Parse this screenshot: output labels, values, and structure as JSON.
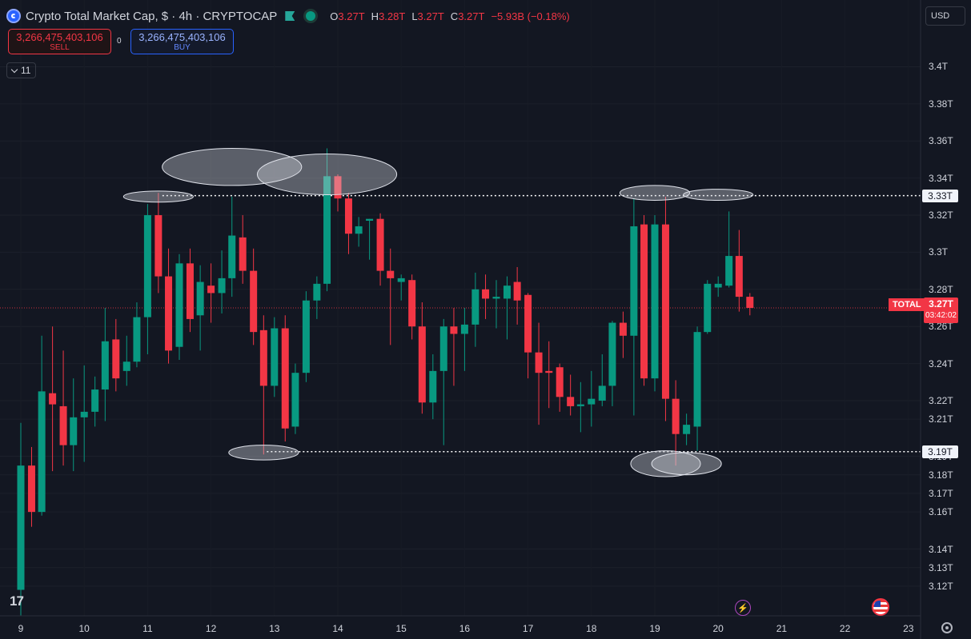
{
  "header": {
    "title": "Crypto Total Market Cap, $ · 4h · CRYPTOCAP",
    "ohlc": [
      {
        "k": "O",
        "v": "3.27T"
      },
      {
        "k": "H",
        "v": "3.28T"
      },
      {
        "k": "L",
        "v": "3.27T"
      },
      {
        "k": "C",
        "v": "3.27T"
      },
      {
        "k": "",
        "v": "−5.93B (−0.18%)"
      }
    ]
  },
  "trade": {
    "sell_value": "3,266,475,403,106",
    "sell_label": "SELL",
    "buy_value": "3,266,475,403,106",
    "buy_label": "BUY",
    "spread": "0"
  },
  "indicators": {
    "count": "11"
  },
  "currency": "USD",
  "total_label": "TOTAL",
  "current_price": {
    "price": "3.27T",
    "countdown": "03:42:02"
  },
  "levels": {
    "resistance": "3.33T",
    "support": "3.19T"
  },
  "colors": {
    "up": "#089981",
    "down": "#f23645",
    "background": "#131722"
  },
  "chart_data": {
    "type": "candlestick",
    "title": "Crypto Total Market Cap",
    "interval": "4h",
    "unit": "USD trillions",
    "ylim": [
      3.104,
      3.436
    ],
    "y_ticks": [
      "3.4T",
      "3.38T",
      "3.36T",
      "3.34T",
      "3.32T",
      "3.3T",
      "3.28T",
      "3.26T",
      "3.24T",
      "3.22T",
      "3.21T",
      "3.19T",
      "3.18T",
      "3.17T",
      "3.16T",
      "3.14T",
      "3.13T",
      "3.12T"
    ],
    "x_ticks": [
      "9",
      "10",
      "11",
      "12",
      "13",
      "14",
      "15",
      "16",
      "17",
      "18",
      "19",
      "20",
      "21",
      "22",
      "23"
    ],
    "horizontal_levels": [
      3.3305,
      3.1925
    ],
    "current_price": 3.27,
    "candles": [
      {
        "x": "9.00",
        "o": 3.118,
        "h": 3.208,
        "l": 3.104,
        "c": 3.185
      },
      {
        "x": "9.17",
        "o": 3.185,
        "h": 3.195,
        "l": 3.152,
        "c": 3.16
      },
      {
        "x": "9.33",
        "o": 3.16,
        "h": 3.255,
        "l": 3.158,
        "c": 3.225
      },
      {
        "x": "9.50",
        "o": 3.224,
        "h": 3.26,
        "l": 3.182,
        "c": 3.218
      },
      {
        "x": "9.67",
        "o": 3.217,
        "h": 3.247,
        "l": 3.185,
        "c": 3.196
      },
      {
        "x": "9.83",
        "o": 3.196,
        "h": 3.232,
        "l": 3.182,
        "c": 3.211
      },
      {
        "x": "10.00",
        "o": 3.211,
        "h": 3.239,
        "l": 3.187,
        "c": 3.214
      },
      {
        "x": "10.17",
        "o": 3.214,
        "h": 3.233,
        "l": 3.206,
        "c": 3.226
      },
      {
        "x": "10.33",
        "o": 3.226,
        "h": 3.27,
        "l": 3.209,
        "c": 3.252
      },
      {
        "x": "10.50",
        "o": 3.253,
        "h": 3.264,
        "l": 3.225,
        "c": 3.232
      },
      {
        "x": "10.67",
        "o": 3.236,
        "h": 3.255,
        "l": 3.228,
        "c": 3.241
      },
      {
        "x": "10.83",
        "o": 3.241,
        "h": 3.273,
        "l": 3.238,
        "c": 3.265
      },
      {
        "x": "11.00",
        "o": 3.265,
        "h": 3.326,
        "l": 3.245,
        "c": 3.32
      },
      {
        "x": "11.17",
        "o": 3.32,
        "h": 3.332,
        "l": 3.278,
        "c": 3.287
      },
      {
        "x": "11.33",
        "o": 3.287,
        "h": 3.302,
        "l": 3.24,
        "c": 3.247
      },
      {
        "x": "11.50",
        "o": 3.249,
        "h": 3.299,
        "l": 3.242,
        "c": 3.294
      },
      {
        "x": "11.67",
        "o": 3.294,
        "h": 3.302,
        "l": 3.257,
        "c": 3.264
      },
      {
        "x": "11.83",
        "o": 3.266,
        "h": 3.293,
        "l": 3.247,
        "c": 3.284
      },
      {
        "x": "12.00",
        "o": 3.282,
        "h": 3.294,
        "l": 3.262,
        "c": 3.278
      },
      {
        "x": "12.17",
        "o": 3.278,
        "h": 3.301,
        "l": 3.267,
        "c": 3.286
      },
      {
        "x": "12.33",
        "o": 3.286,
        "h": 3.33,
        "l": 3.276,
        "c": 3.309
      },
      {
        "x": "12.50",
        "o": 3.308,
        "h": 3.32,
        "l": 3.283,
        "c": 3.29
      },
      {
        "x": "12.67",
        "o": 3.29,
        "h": 3.302,
        "l": 3.25,
        "c": 3.257
      },
      {
        "x": "12.83",
        "o": 3.258,
        "h": 3.266,
        "l": 3.191,
        "c": 3.228
      },
      {
        "x": "13.00",
        "o": 3.228,
        "h": 3.265,
        "l": 3.222,
        "c": 3.259
      },
      {
        "x": "13.17",
        "o": 3.259,
        "h": 3.266,
        "l": 3.198,
        "c": 3.205
      },
      {
        "x": "13.33",
        "o": 3.206,
        "h": 3.24,
        "l": 3.202,
        "c": 3.235
      },
      {
        "x": "13.50",
        "o": 3.235,
        "h": 3.279,
        "l": 3.23,
        "c": 3.274
      },
      {
        "x": "13.67",
        "o": 3.274,
        "h": 3.287,
        "l": 3.264,
        "c": 3.283
      },
      {
        "x": "13.83",
        "o": 3.283,
        "h": 3.356,
        "l": 3.279,
        "c": 3.341
      },
      {
        "x": "14.00",
        "o": 3.341,
        "h": 3.342,
        "l": 3.322,
        "c": 3.329
      },
      {
        "x": "14.17",
        "o": 3.329,
        "h": 3.332,
        "l": 3.299,
        "c": 3.31
      },
      {
        "x": "14.33",
        "o": 3.31,
        "h": 3.319,
        "l": 3.303,
        "c": 3.314
      },
      {
        "x": "14.50",
        "o": 3.317,
        "h": 3.318,
        "l": 3.296,
        "c": 3.318
      },
      {
        "x": "14.67",
        "o": 3.318,
        "h": 3.321,
        "l": 3.282,
        "c": 3.29
      },
      {
        "x": "14.83",
        "o": 3.29,
        "h": 3.302,
        "l": 3.25,
        "c": 3.286
      },
      {
        "x": "15.00",
        "o": 3.284,
        "h": 3.288,
        "l": 3.274,
        "c": 3.286
      },
      {
        "x": "15.17",
        "o": 3.285,
        "h": 3.288,
        "l": 3.253,
        "c": 3.26
      },
      {
        "x": "15.33",
        "o": 3.26,
        "h": 3.273,
        "l": 3.213,
        "c": 3.219
      },
      {
        "x": "15.50",
        "o": 3.219,
        "h": 3.245,
        "l": 3.21,
        "c": 3.236
      },
      {
        "x": "15.67",
        "o": 3.236,
        "h": 3.264,
        "l": 3.196,
        "c": 3.26
      },
      {
        "x": "15.83",
        "o": 3.26,
        "h": 3.27,
        "l": 3.228,
        "c": 3.256
      },
      {
        "x": "16.00",
        "o": 3.256,
        "h": 3.27,
        "l": 3.236,
        "c": 3.261
      },
      {
        "x": "16.17",
        "o": 3.261,
        "h": 3.289,
        "l": 3.249,
        "c": 3.28
      },
      {
        "x": "16.33",
        "o": 3.28,
        "h": 3.288,
        "l": 3.264,
        "c": 3.275
      },
      {
        "x": "16.50",
        "o": 3.275,
        "h": 3.285,
        "l": 3.259,
        "c": 3.276
      },
      {
        "x": "16.67",
        "o": 3.275,
        "h": 3.287,
        "l": 3.253,
        "c": 3.282
      },
      {
        "x": "16.83",
        "o": 3.284,
        "h": 3.292,
        "l": 3.261,
        "c": 3.274
      },
      {
        "x": "17.00",
        "o": 3.277,
        "h": 3.278,
        "l": 3.232,
        "c": 3.246
      },
      {
        "x": "17.17",
        "o": 3.246,
        "h": 3.262,
        "l": 3.207,
        "c": 3.235
      },
      {
        "x": "17.33",
        "o": 3.236,
        "h": 3.252,
        "l": 3.216,
        "c": 3.235
      },
      {
        "x": "17.50",
        "o": 3.238,
        "h": 3.24,
        "l": 3.214,
        "c": 3.222
      },
      {
        "x": "17.67",
        "o": 3.222,
        "h": 3.234,
        "l": 3.212,
        "c": 3.217
      },
      {
        "x": "17.83",
        "o": 3.217,
        "h": 3.23,
        "l": 3.203,
        "c": 3.218
      },
      {
        "x": "18.00",
        "o": 3.218,
        "h": 3.236,
        "l": 3.206,
        "c": 3.221
      },
      {
        "x": "18.17",
        "o": 3.22,
        "h": 3.245,
        "l": 3.217,
        "c": 3.228
      },
      {
        "x": "18.33",
        "o": 3.228,
        "h": 3.263,
        "l": 3.217,
        "c": 3.262
      },
      {
        "x": "18.50",
        "o": 3.262,
        "h": 3.268,
        "l": 3.243,
        "c": 3.255
      },
      {
        "x": "18.67",
        "o": 3.255,
        "h": 3.329,
        "l": 3.212,
        "c": 3.314
      },
      {
        "x": "18.83",
        "o": 3.315,
        "h": 3.32,
        "l": 3.228,
        "c": 3.232
      },
      {
        "x": "19.00",
        "o": 3.232,
        "h": 3.32,
        "l": 3.225,
        "c": 3.315
      },
      {
        "x": "19.17",
        "o": 3.315,
        "h": 3.33,
        "l": 3.209,
        "c": 3.221
      },
      {
        "x": "19.33",
        "o": 3.221,
        "h": 3.231,
        "l": 3.185,
        "c": 3.202
      },
      {
        "x": "19.50",
        "o": 3.202,
        "h": 3.213,
        "l": 3.196,
        "c": 3.207
      },
      {
        "x": "19.67",
        "o": 3.206,
        "h": 3.26,
        "l": 3.193,
        "c": 3.257
      },
      {
        "x": "19.83",
        "o": 3.257,
        "h": 3.285,
        "l": 3.256,
        "c": 3.283
      },
      {
        "x": "20.00",
        "o": 3.281,
        "h": 3.287,
        "l": 3.276,
        "c": 3.283
      },
      {
        "x": "20.17",
        "o": 3.282,
        "h": 3.322,
        "l": 3.281,
        "c": 3.298
      },
      {
        "x": "20.33",
        "o": 3.298,
        "h": 3.312,
        "l": 3.268,
        "c": 3.276
      },
      {
        "x": "20.50",
        "o": 3.276,
        "h": 3.278,
        "l": 3.266,
        "c": 3.27
      }
    ],
    "annotations": [
      {
        "type": "ellipse",
        "x": "11.17",
        "y": 3.33,
        "rx_hours": 4,
        "ry": 0.003
      },
      {
        "type": "ellipse",
        "x": "12.33",
        "y": 3.346,
        "rx_hours": 8,
        "ry": 0.01
      },
      {
        "type": "ellipse",
        "x": "13.83",
        "y": 3.342,
        "rx_hours": 8,
        "ry": 0.011
      },
      {
        "type": "ellipse",
        "x": "12.83",
        "y": 3.192,
        "rx_hours": 4,
        "ry": 0.004
      },
      {
        "type": "ellipse",
        "x": "19.00",
        "y": 3.332,
        "rx_hours": 4,
        "ry": 0.004
      },
      {
        "type": "ellipse",
        "x": "20.00",
        "y": 3.331,
        "rx_hours": 4,
        "ry": 0.003
      },
      {
        "type": "ellipse",
        "x": "19.17",
        "y": 3.186,
        "rx_hours": 4,
        "ry": 0.007
      },
      {
        "type": "ellipse",
        "x": "19.50",
        "y": 3.186,
        "rx_hours": 4,
        "ry": 0.006
      }
    ]
  }
}
